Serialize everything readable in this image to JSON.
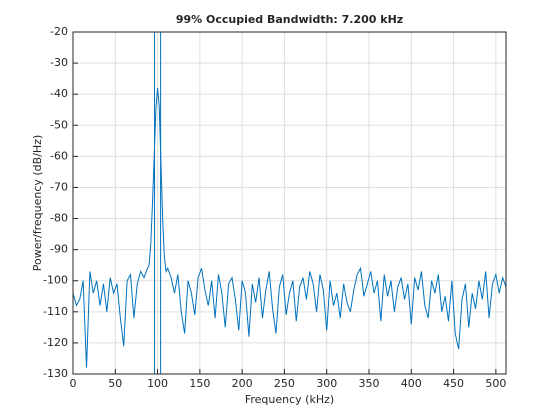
{
  "chart_data": {
    "type": "line",
    "title": "99% Occupied Bandwidth: 7.200 kHz",
    "xlabel": "Frequency (kHz)",
    "ylabel": "Power/frequency (dB/Hz)",
    "xlim": [
      0,
      512
    ],
    "ylim": [
      -130,
      -20
    ],
    "xticks": [
      0,
      50,
      100,
      150,
      200,
      250,
      300,
      350,
      400,
      450,
      500
    ],
    "yticks": [
      -130,
      -120,
      -110,
      -100,
      -90,
      -80,
      -70,
      -60,
      -50,
      -40,
      -30,
      -20
    ],
    "grid": true,
    "bandwidth_lines": [
      96.4,
      103.6
    ],
    "series": [
      {
        "color": "#0072bd",
        "x": [
          0,
          4,
          8,
          12,
          16,
          20,
          24,
          28,
          32,
          36,
          40,
          44,
          48,
          52,
          56,
          60,
          64,
          68,
          72,
          76,
          80,
          84,
          88,
          90,
          92,
          94,
          96,
          98,
          100,
          102,
          104,
          106,
          108,
          110,
          112,
          116,
          120,
          124,
          128,
          132,
          136,
          140,
          144,
          148,
          152,
          156,
          160,
          164,
          168,
          172,
          176,
          180,
          184,
          188,
          192,
          196,
          200,
          204,
          208,
          212,
          216,
          220,
          224,
          228,
          232,
          236,
          240,
          244,
          248,
          252,
          256,
          260,
          264,
          268,
          272,
          276,
          280,
          284,
          288,
          292,
          296,
          300,
          304,
          308,
          312,
          316,
          320,
          324,
          328,
          332,
          336,
          340,
          344,
          348,
          352,
          356,
          360,
          364,
          368,
          372,
          376,
          380,
          384,
          388,
          392,
          396,
          400,
          404,
          408,
          412,
          416,
          420,
          424,
          428,
          432,
          436,
          440,
          444,
          448,
          452,
          456,
          460,
          464,
          468,
          472,
          476,
          480,
          484,
          488,
          492,
          496,
          500,
          504,
          508,
          512
        ],
        "values": [
          -104,
          -108,
          -106,
          -100,
          -128,
          -97,
          -104,
          -100,
          -108,
          -101,
          -110,
          -99,
          -104,
          -101,
          -112,
          -121,
          -100,
          -98,
          -112,
          -101,
          -97,
          -99,
          -96,
          -95,
          -88,
          -75,
          -60,
          -45,
          -38,
          -44,
          -62,
          -80,
          -92,
          -97,
          -96,
          -99,
          -104,
          -98,
          -110,
          -117,
          -100,
          -104,
          -111,
          -99,
          -96,
          -103,
          -108,
          -100,
          -112,
          -98,
          -104,
          -115,
          -101,
          -99,
          -106,
          -116,
          -100,
          -104,
          -118,
          -101,
          -107,
          -99,
          -112,
          -103,
          -97,
          -109,
          -117,
          -102,
          -98,
          -111,
          -104,
          -100,
          -113,
          -102,
          -99,
          -106,
          -97,
          -101,
          -110,
          -98,
          -103,
          -116,
          -100,
          -108,
          -104,
          -112,
          -101,
          -107,
          -110,
          -103,
          -98,
          -96,
          -105,
          -101,
          -97,
          -104,
          -100,
          -113,
          -98,
          -105,
          -100,
          -110,
          -102,
          -99,
          -106,
          -101,
          -114,
          -99,
          -103,
          -97,
          -108,
          -112,
          -100,
          -104,
          -98,
          -110,
          -105,
          -113,
          -100,
          -117,
          -122,
          -106,
          -101,
          -115,
          -104,
          -109,
          -100,
          -106,
          -97,
          -112,
          -101,
          -98,
          -104,
          -99,
          -102
        ]
      }
    ]
  }
}
